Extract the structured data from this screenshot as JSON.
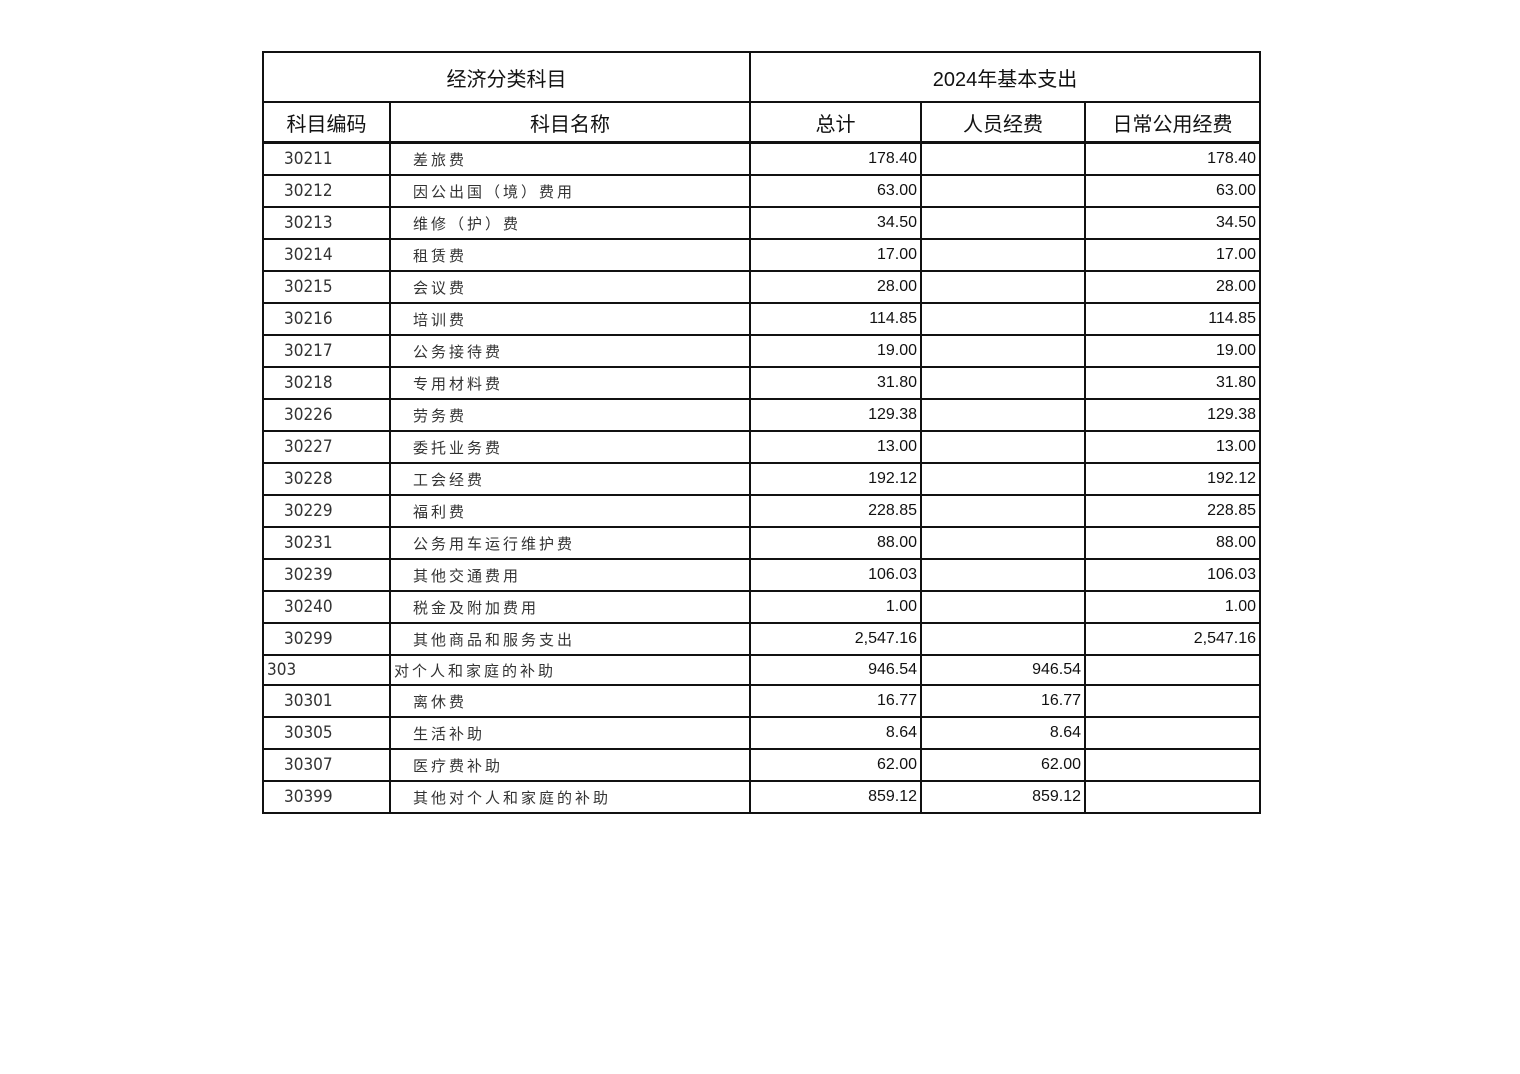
{
  "header": {
    "group_left": "经济分类科目",
    "group_right": "2024年基本支出",
    "columns": [
      "科目编码",
      "科目名称",
      "总计",
      "人员经费",
      "日常公用经费"
    ]
  },
  "rows": [
    {
      "code": "30211",
      "name": "差旅费",
      "total": "178.40",
      "personnel": "",
      "public": "178.40"
    },
    {
      "code": "30212",
      "name": "因公出国（境）费用",
      "total": "63.00",
      "personnel": "",
      "public": "63.00"
    },
    {
      "code": "30213",
      "name": "维修（护）费",
      "total": "34.50",
      "personnel": "",
      "public": "34.50"
    },
    {
      "code": "30214",
      "name": "租赁费",
      "total": "17.00",
      "personnel": "",
      "public": "17.00"
    },
    {
      "code": "30215",
      "name": "会议费",
      "total": "28.00",
      "personnel": "",
      "public": "28.00"
    },
    {
      "code": "30216",
      "name": "培训费",
      "total": "114.85",
      "personnel": "",
      "public": "114.85"
    },
    {
      "code": "30217",
      "name": "公务接待费",
      "total": "19.00",
      "personnel": "",
      "public": "19.00"
    },
    {
      "code": "30218",
      "name": "专用材料费",
      "total": "31.80",
      "personnel": "",
      "public": "31.80"
    },
    {
      "code": "30226",
      "name": "劳务费",
      "total": "129.38",
      "personnel": "",
      "public": "129.38"
    },
    {
      "code": "30227",
      "name": "委托业务费",
      "total": "13.00",
      "personnel": "",
      "public": "13.00"
    },
    {
      "code": "30228",
      "name": "工会经费",
      "total": "192.12",
      "personnel": "",
      "public": "192.12"
    },
    {
      "code": "30229",
      "name": "福利费",
      "total": "228.85",
      "personnel": "",
      "public": "228.85"
    },
    {
      "code": "30231",
      "name": "公务用车运行维护费",
      "total": "88.00",
      "personnel": "",
      "public": "88.00"
    },
    {
      "code": "30239",
      "name": "其他交通费用",
      "total": "106.03",
      "personnel": "",
      "public": "106.03"
    },
    {
      "code": "30240",
      "name": "税金及附加费用",
      "total": "1.00",
      "personnel": "",
      "public": "1.00"
    },
    {
      "code": "30299",
      "name": "其他商品和服务支出",
      "total": "2,547.16",
      "personnel": "",
      "public": "2,547.16"
    },
    {
      "code": "303",
      "name": "对个人和家庭的补助",
      "total": "946.54",
      "personnel": "946.54",
      "public": "",
      "parent": true
    },
    {
      "code": "30301",
      "name": "离休费",
      "total": "16.77",
      "personnel": "16.77",
      "public": ""
    },
    {
      "code": "30305",
      "name": "生活补助",
      "total": "8.64",
      "personnel": "8.64",
      "public": ""
    },
    {
      "code": "30307",
      "name": "医疗费补助",
      "total": "62.00",
      "personnel": "62.00",
      "public": ""
    },
    {
      "code": "30399",
      "name": "其他对个人和家庭的补助",
      "total": "859.12",
      "personnel": "859.12",
      "public": ""
    }
  ]
}
